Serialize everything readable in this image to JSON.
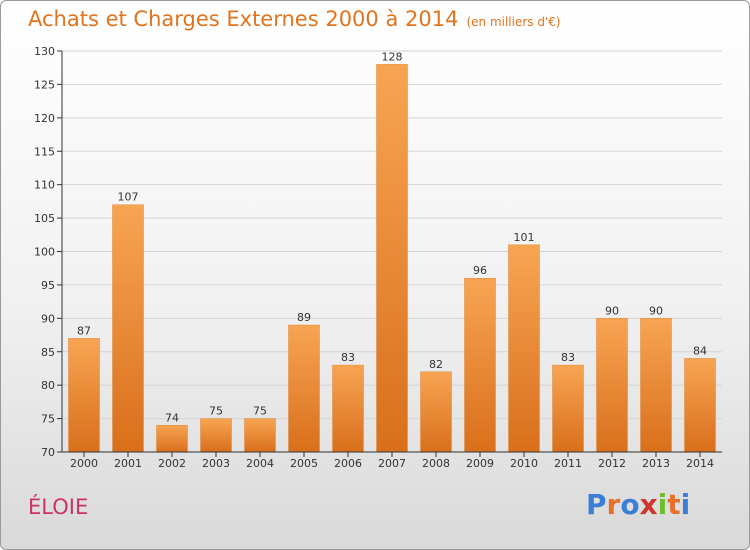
{
  "header": {
    "title": "Achats et Charges Externes 2000 à 2014",
    "subtitle": "(en milliers d'€)"
  },
  "footer": {
    "place": "ÉLOIE",
    "logo_text": "Proxiti"
  },
  "colors": {
    "bar_top": "#f7a553",
    "bar_bottom": "#d96f1b",
    "title": "#e0741e",
    "place": "#cc3366",
    "grid": "#d4d4d4",
    "axis": "#333333"
  },
  "chart_data": {
    "type": "bar",
    "title": "Achats et Charges Externes 2000 à 2014",
    "subtitle": "(en milliers d'€)",
    "xlabel": "",
    "ylabel": "",
    "categories": [
      "2000",
      "2001",
      "2002",
      "2003",
      "2004",
      "2005",
      "2006",
      "2007",
      "2008",
      "2009",
      "2010",
      "2011",
      "2012",
      "2013",
      "2014"
    ],
    "values": [
      87,
      107,
      74,
      75,
      75,
      89,
      83,
      128,
      82,
      96,
      101,
      83,
      90,
      90,
      84
    ],
    "ylim": [
      70,
      130
    ],
    "yticks": [
      70,
      75,
      80,
      85,
      90,
      95,
      100,
      105,
      110,
      115,
      120,
      125,
      130
    ],
    "grid": true,
    "data_labels": true
  }
}
